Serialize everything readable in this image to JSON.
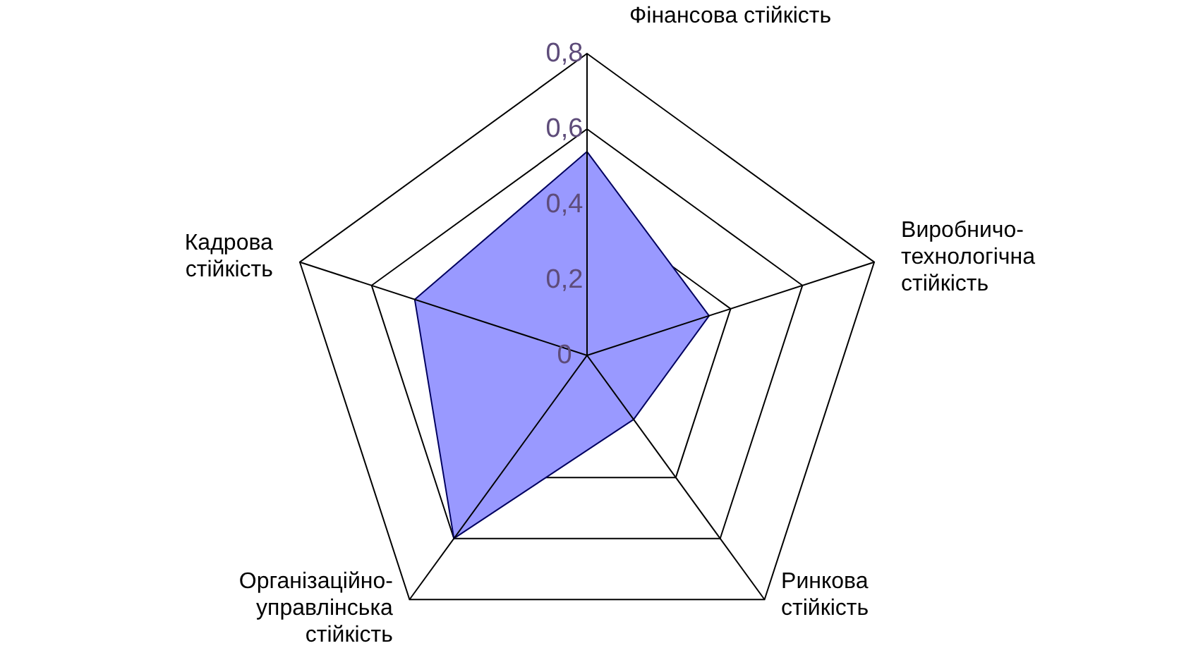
{
  "chart_data": {
    "type": "radar",
    "categories": [
      "Фінансова стійкість",
      "Виробничо-технологічна стійкість",
      "Ринкова стійкість",
      "Організаційно-управлінська стійкість",
      "Кадрова стійкість"
    ],
    "series": [
      {
        "color": "#9999ff",
        "values": [
          0.54,
          0.34,
          0.21,
          0.6,
          0.48
        ]
      }
    ],
    "ylim": [
      0,
      0.8
    ],
    "yticks": [
      {
        "value": 0,
        "label": "0"
      },
      {
        "value": 0.2,
        "label": "0,2"
      },
      {
        "value": 0.4,
        "label": "0,4"
      },
      {
        "value": 0.6,
        "label": "0,6"
      },
      {
        "value": 0.8,
        "label": "0,8"
      }
    ]
  }
}
